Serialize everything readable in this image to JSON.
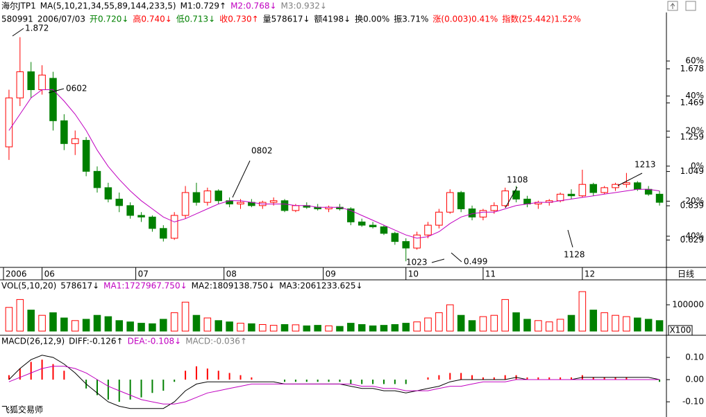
{
  "chart_data": [
    {
      "type": "candlestick",
      "header": [
        {
          "text": "海尔JTP1",
          "color": "#000000"
        },
        {
          "text": "MA(5,10,21,34,55,89,144,233,5)",
          "color": "#000000"
        },
        {
          "text": "M1:0.729↑",
          "color": "#000000"
        },
        {
          "text": "M2:0.768↓",
          "color": "#c000c0"
        },
        {
          "text": "M3:0.932↓",
          "color": "#808080"
        }
      ],
      "info": [
        {
          "text": "580991",
          "color": "#000000"
        },
        {
          "text": "2006/07/03",
          "color": "#000000"
        },
        {
          "text": "开0.720↓",
          "color": "#008000"
        },
        {
          "text": "高0.740↓",
          "color": "#ff0000"
        },
        {
          "text": "低0.713↓",
          "color": "#008000"
        },
        {
          "text": "收0.730↑",
          "color": "#ff0000"
        },
        {
          "text": "量578617↓",
          "color": "#000000"
        },
        {
          "text": "额4198↓",
          "color": "#000000"
        },
        {
          "text": "换0.00%",
          "color": "#000000"
        },
        {
          "text": "振3.71%",
          "color": "#000000"
        },
        {
          "text": "涨(0.003)0.41%",
          "color": "#ff0000"
        },
        {
          "text": "指数(25.442)1.52%",
          "color": "#ff0000"
        }
      ],
      "period_label": "日线",
      "xlim": [
        0,
        60
      ],
      "xticks": [
        {
          "value": 0,
          "label": "2006"
        },
        {
          "value": 3.5,
          "label": "06"
        },
        {
          "value": 12,
          "label": "07"
        },
        {
          "value": 20,
          "label": "08"
        },
        {
          "value": 29,
          "label": "09"
        },
        {
          "value": 36.5,
          "label": "10"
        },
        {
          "value": 43.5,
          "label": "11"
        },
        {
          "value": 52.5,
          "label": "12"
        }
      ],
      "ylim": [
        0.47,
        1.93
      ],
      "yticks": [
        0.629,
        0.839,
        1.049,
        1.259,
        1.469,
        1.678
      ],
      "y2lim": [
        -57,
        79
      ],
      "y2ticks": [
        {
          "value": -40,
          "label": "-40%"
        },
        {
          "value": -20,
          "label": "-20%"
        },
        {
          "value": 0,
          "label": "0%"
        },
        {
          "value": 20,
          "label": "20%"
        },
        {
          "value": 40,
          "label": "40%"
        },
        {
          "value": 60,
          "label": "60%"
        }
      ],
      "up_color": "#ff0000",
      "down_color": "#008000",
      "values": [
        [
          1.2,
          1.55,
          1.12,
          1.5
        ],
        [
          1.5,
          1.872,
          1.45,
          1.66
        ],
        [
          1.66,
          1.72,
          1.5,
          1.55
        ],
        [
          1.55,
          1.7,
          1.52,
          1.64
        ],
        [
          1.62,
          1.66,
          1.3,
          1.36
        ],
        [
          1.36,
          1.4,
          1.18,
          1.22
        ],
        [
          1.22,
          1.3,
          1.15,
          1.25
        ],
        [
          1.24,
          1.26,
          1.02,
          1.05
        ],
        [
          1.05,
          1.08,
          0.92,
          0.95
        ],
        [
          0.95,
          0.98,
          0.86,
          0.88
        ],
        [
          0.88,
          0.92,
          0.8,
          0.84
        ],
        [
          0.84,
          0.86,
          0.76,
          0.78
        ],
        [
          0.78,
          0.8,
          0.74,
          0.77
        ],
        [
          0.77,
          0.78,
          0.68,
          0.7
        ],
        [
          0.7,
          0.72,
          0.62,
          0.64
        ],
        [
          0.64,
          0.8,
          0.63,
          0.78
        ],
        [
          0.78,
          0.96,
          0.76,
          0.92
        ],
        [
          0.92,
          0.98,
          0.84,
          0.86
        ],
        [
          0.86,
          0.95,
          0.84,
          0.93
        ],
        [
          0.93,
          0.94,
          0.85,
          0.87
        ],
        [
          0.87,
          0.89,
          0.83,
          0.85
        ],
        [
          0.85,
          0.88,
          0.82,
          0.86
        ],
        [
          0.86,
          0.88,
          0.83,
          0.84
        ],
        [
          0.84,
          0.87,
          0.82,
          0.86
        ],
        [
          0.86,
          0.89,
          0.84,
          0.87
        ],
        [
          0.87,
          0.88,
          0.8,
          0.81
        ],
        [
          0.81,
          0.85,
          0.8,
          0.84
        ],
        [
          0.84,
          0.86,
          0.82,
          0.83
        ],
        [
          0.83,
          0.85,
          0.81,
          0.82
        ],
        [
          0.82,
          0.84,
          0.8,
          0.83
        ],
        [
          0.83,
          0.85,
          0.81,
          0.82
        ],
        [
          0.82,
          0.83,
          0.72,
          0.74
        ],
        [
          0.74,
          0.76,
          0.71,
          0.72
        ],
        [
          0.72,
          0.74,
          0.7,
          0.71
        ],
        [
          0.71,
          0.72,
          0.66,
          0.67
        ],
        [
          0.67,
          0.68,
          0.6,
          0.62
        ],
        [
          0.62,
          0.64,
          0.499,
          0.58
        ],
        [
          0.58,
          0.68,
          0.57,
          0.66
        ],
        [
          0.66,
          0.74,
          0.64,
          0.72
        ],
        [
          0.72,
          0.82,
          0.7,
          0.8
        ],
        [
          0.8,
          0.94,
          0.79,
          0.92
        ],
        [
          0.92,
          0.93,
          0.8,
          0.82
        ],
        [
          0.82,
          0.84,
          0.75,
          0.77
        ],
        [
          0.77,
          0.82,
          0.75,
          0.81
        ],
        [
          0.81,
          0.86,
          0.79,
          0.84
        ],
        [
          0.84,
          0.95,
          0.83,
          0.93
        ],
        [
          0.93,
          0.96,
          0.86,
          0.88
        ],
        [
          0.88,
          0.9,
          0.83,
          0.85
        ],
        [
          0.85,
          0.87,
          0.82,
          0.86
        ],
        [
          0.86,
          0.88,
          0.84,
          0.87
        ],
        [
          0.87,
          0.92,
          0.86,
          0.91
        ],
        [
          0.91,
          0.94,
          0.88,
          0.9
        ],
        [
          0.9,
          1.06,
          0.89,
          0.97
        ],
        [
          0.97,
          0.98,
          0.9,
          0.92
        ],
        [
          0.92,
          0.96,
          0.91,
          0.95
        ],
        [
          0.95,
          0.98,
          0.93,
          0.97
        ],
        [
          0.97,
          1.04,
          0.95,
          0.98
        ],
        [
          0.98,
          0.99,
          0.93,
          0.94
        ],
        [
          0.94,
          0.96,
          0.9,
          0.91
        ],
        [
          0.91,
          0.93,
          0.84,
          0.86
        ]
      ],
      "lines": [
        {
          "color": "#c000c0",
          "values": [
            1.3,
            1.4,
            1.5,
            1.55,
            1.55,
            1.48,
            1.4,
            1.3,
            1.18,
            1.08,
            1.0,
            0.93,
            0.87,
            0.82,
            0.77,
            0.74,
            0.76,
            0.79,
            0.82,
            0.85,
            0.87,
            0.87,
            0.86,
            0.85,
            0.85,
            0.85,
            0.84,
            0.84,
            0.83,
            0.83,
            0.83,
            0.81,
            0.78,
            0.75,
            0.72,
            0.69,
            0.66,
            0.64,
            0.65,
            0.68,
            0.73,
            0.77,
            0.79,
            0.8,
            0.8,
            0.82,
            0.84,
            0.85,
            0.86,
            0.86,
            0.87,
            0.88,
            0.89,
            0.9,
            0.91,
            0.92,
            0.93,
            0.94,
            0.94,
            0.93
          ]
        }
      ],
      "annotations": [
        {
          "text": "1.872"
        },
        {
          "text": "0602"
        },
        {
          "text": "0802"
        },
        {
          "text": "1108"
        },
        {
          "text": "1213"
        },
        {
          "text": "1023"
        },
        {
          "text": "0.499"
        },
        {
          "text": "1128"
        }
      ]
    },
    {
      "type": "bar",
      "header": [
        {
          "text": "VOL(5,10,20)",
          "color": "#000000"
        },
        {
          "text": "578617↓",
          "color": "#000000"
        },
        {
          "text": "MA1:1727967.750↓",
          "color": "#c000c0"
        },
        {
          "text": "MA2:1809138.750↓",
          "color": "#000000"
        },
        {
          "text": "MA3:2061233.625↓",
          "color": "#000000"
        }
      ],
      "unit_label": "X100",
      "ylim": [
        0,
        150000
      ],
      "yticks": [
        100000
      ],
      "values": [
        90000,
        120000,
        80000,
        60000,
        70000,
        50000,
        40000,
        45000,
        60000,
        55000,
        40000,
        35000,
        30000,
        28000,
        45000,
        70000,
        110000,
        60000,
        50000,
        40000,
        35000,
        30000,
        28000,
        25000,
        22000,
        25000,
        24000,
        20000,
        22000,
        20000,
        18000,
        30000,
        25000,
        20000,
        22000,
        25000,
        30000,
        35000,
        50000,
        70000,
        100000,
        60000,
        40000,
        55000,
        60000,
        120000,
        70000,
        45000,
        40000,
        35000,
        45000,
        60000,
        150000,
        80000,
        70000,
        60000,
        55000,
        50000,
        45000,
        40000
      ]
    },
    {
      "type": "macd",
      "header": [
        {
          "text": "MACD(26,12,9)",
          "color": "#000000"
        },
        {
          "text": "DIFF:-0.126↑",
          "color": "#000000"
        },
        {
          "text": "DEA:-0.108↓",
          "color": "#c000c0"
        },
        {
          "text": "MACD:-0.036↑",
          "color": "#808080"
        }
      ],
      "footer": "飞狐交易师",
      "ylim": [
        -0.156,
        0.15
      ],
      "yticks": [
        {
          "value": -0.1,
          "label": "-0.10"
        },
        {
          "value": 0,
          "label": "0.00"
        },
        {
          "value": 0.1,
          "label": "0.10"
        }
      ],
      "up_color": "#ff0000",
      "down_color": "#008000",
      "values": [
        0.02,
        0.05,
        0.08,
        0.09,
        0.07,
        0.04,
        0.0,
        -0.04,
        -0.07,
        -0.09,
        -0.1,
        -0.09,
        -0.08,
        -0.06,
        -0.05,
        -0.01,
        0.04,
        0.06,
        0.05,
        0.04,
        0.03,
        0.02,
        0.01,
        0.0,
        0.0,
        -0.01,
        -0.01,
        -0.01,
        -0.01,
        -0.01,
        -0.01,
        -0.02,
        -0.02,
        -0.02,
        -0.02,
        -0.02,
        -0.02,
        0.0,
        0.01,
        0.02,
        0.03,
        0.03,
        0.02,
        0.01,
        0.01,
        0.02,
        0.02,
        0.01,
        0.01,
        0.01,
        0.01,
        0.01,
        0.02,
        0.01,
        0.01,
        0.01,
        0.01,
        0.0,
        0.0,
        -0.01
      ],
      "lines": [
        {
          "color": "#000000",
          "values": [
            0.0,
            0.05,
            0.09,
            0.11,
            0.1,
            0.07,
            0.03,
            -0.02,
            -0.06,
            -0.1,
            -0.12,
            -0.13,
            -0.13,
            -0.13,
            -0.13,
            -0.1,
            -0.05,
            -0.02,
            -0.01,
            -0.01,
            -0.01,
            -0.01,
            -0.01,
            -0.01,
            -0.01,
            -0.02,
            -0.02,
            -0.02,
            -0.02,
            -0.02,
            -0.02,
            -0.03,
            -0.04,
            -0.04,
            -0.05,
            -0.05,
            -0.06,
            -0.05,
            -0.04,
            -0.03,
            -0.01,
            0.0,
            0.0,
            0.0,
            0.0,
            0.0,
            0.01,
            0.0,
            0.0,
            0.0,
            0.0,
            0.0,
            0.01,
            0.01,
            0.01,
            0.01,
            0.01,
            0.01,
            0.01,
            0.0
          ]
        },
        {
          "color": "#c000c0",
          "values": [
            -0.01,
            0.01,
            0.03,
            0.05,
            0.06,
            0.06,
            0.05,
            0.03,
            0.0,
            -0.03,
            -0.05,
            -0.07,
            -0.09,
            -0.1,
            -0.11,
            -0.11,
            -0.1,
            -0.08,
            -0.06,
            -0.05,
            -0.04,
            -0.03,
            -0.02,
            -0.02,
            -0.02,
            -0.02,
            -0.02,
            -0.02,
            -0.02,
            -0.02,
            -0.02,
            -0.02,
            -0.03,
            -0.03,
            -0.04,
            -0.04,
            -0.05,
            -0.05,
            -0.05,
            -0.04,
            -0.03,
            -0.03,
            -0.02,
            -0.01,
            -0.01,
            -0.01,
            0.0,
            0.0,
            0.0,
            0.0,
            0.0,
            0.0,
            0.0,
            0.0,
            0.0,
            0.0,
            0.0,
            0.0,
            0.0,
            0.0
          ]
        }
      ]
    }
  ]
}
